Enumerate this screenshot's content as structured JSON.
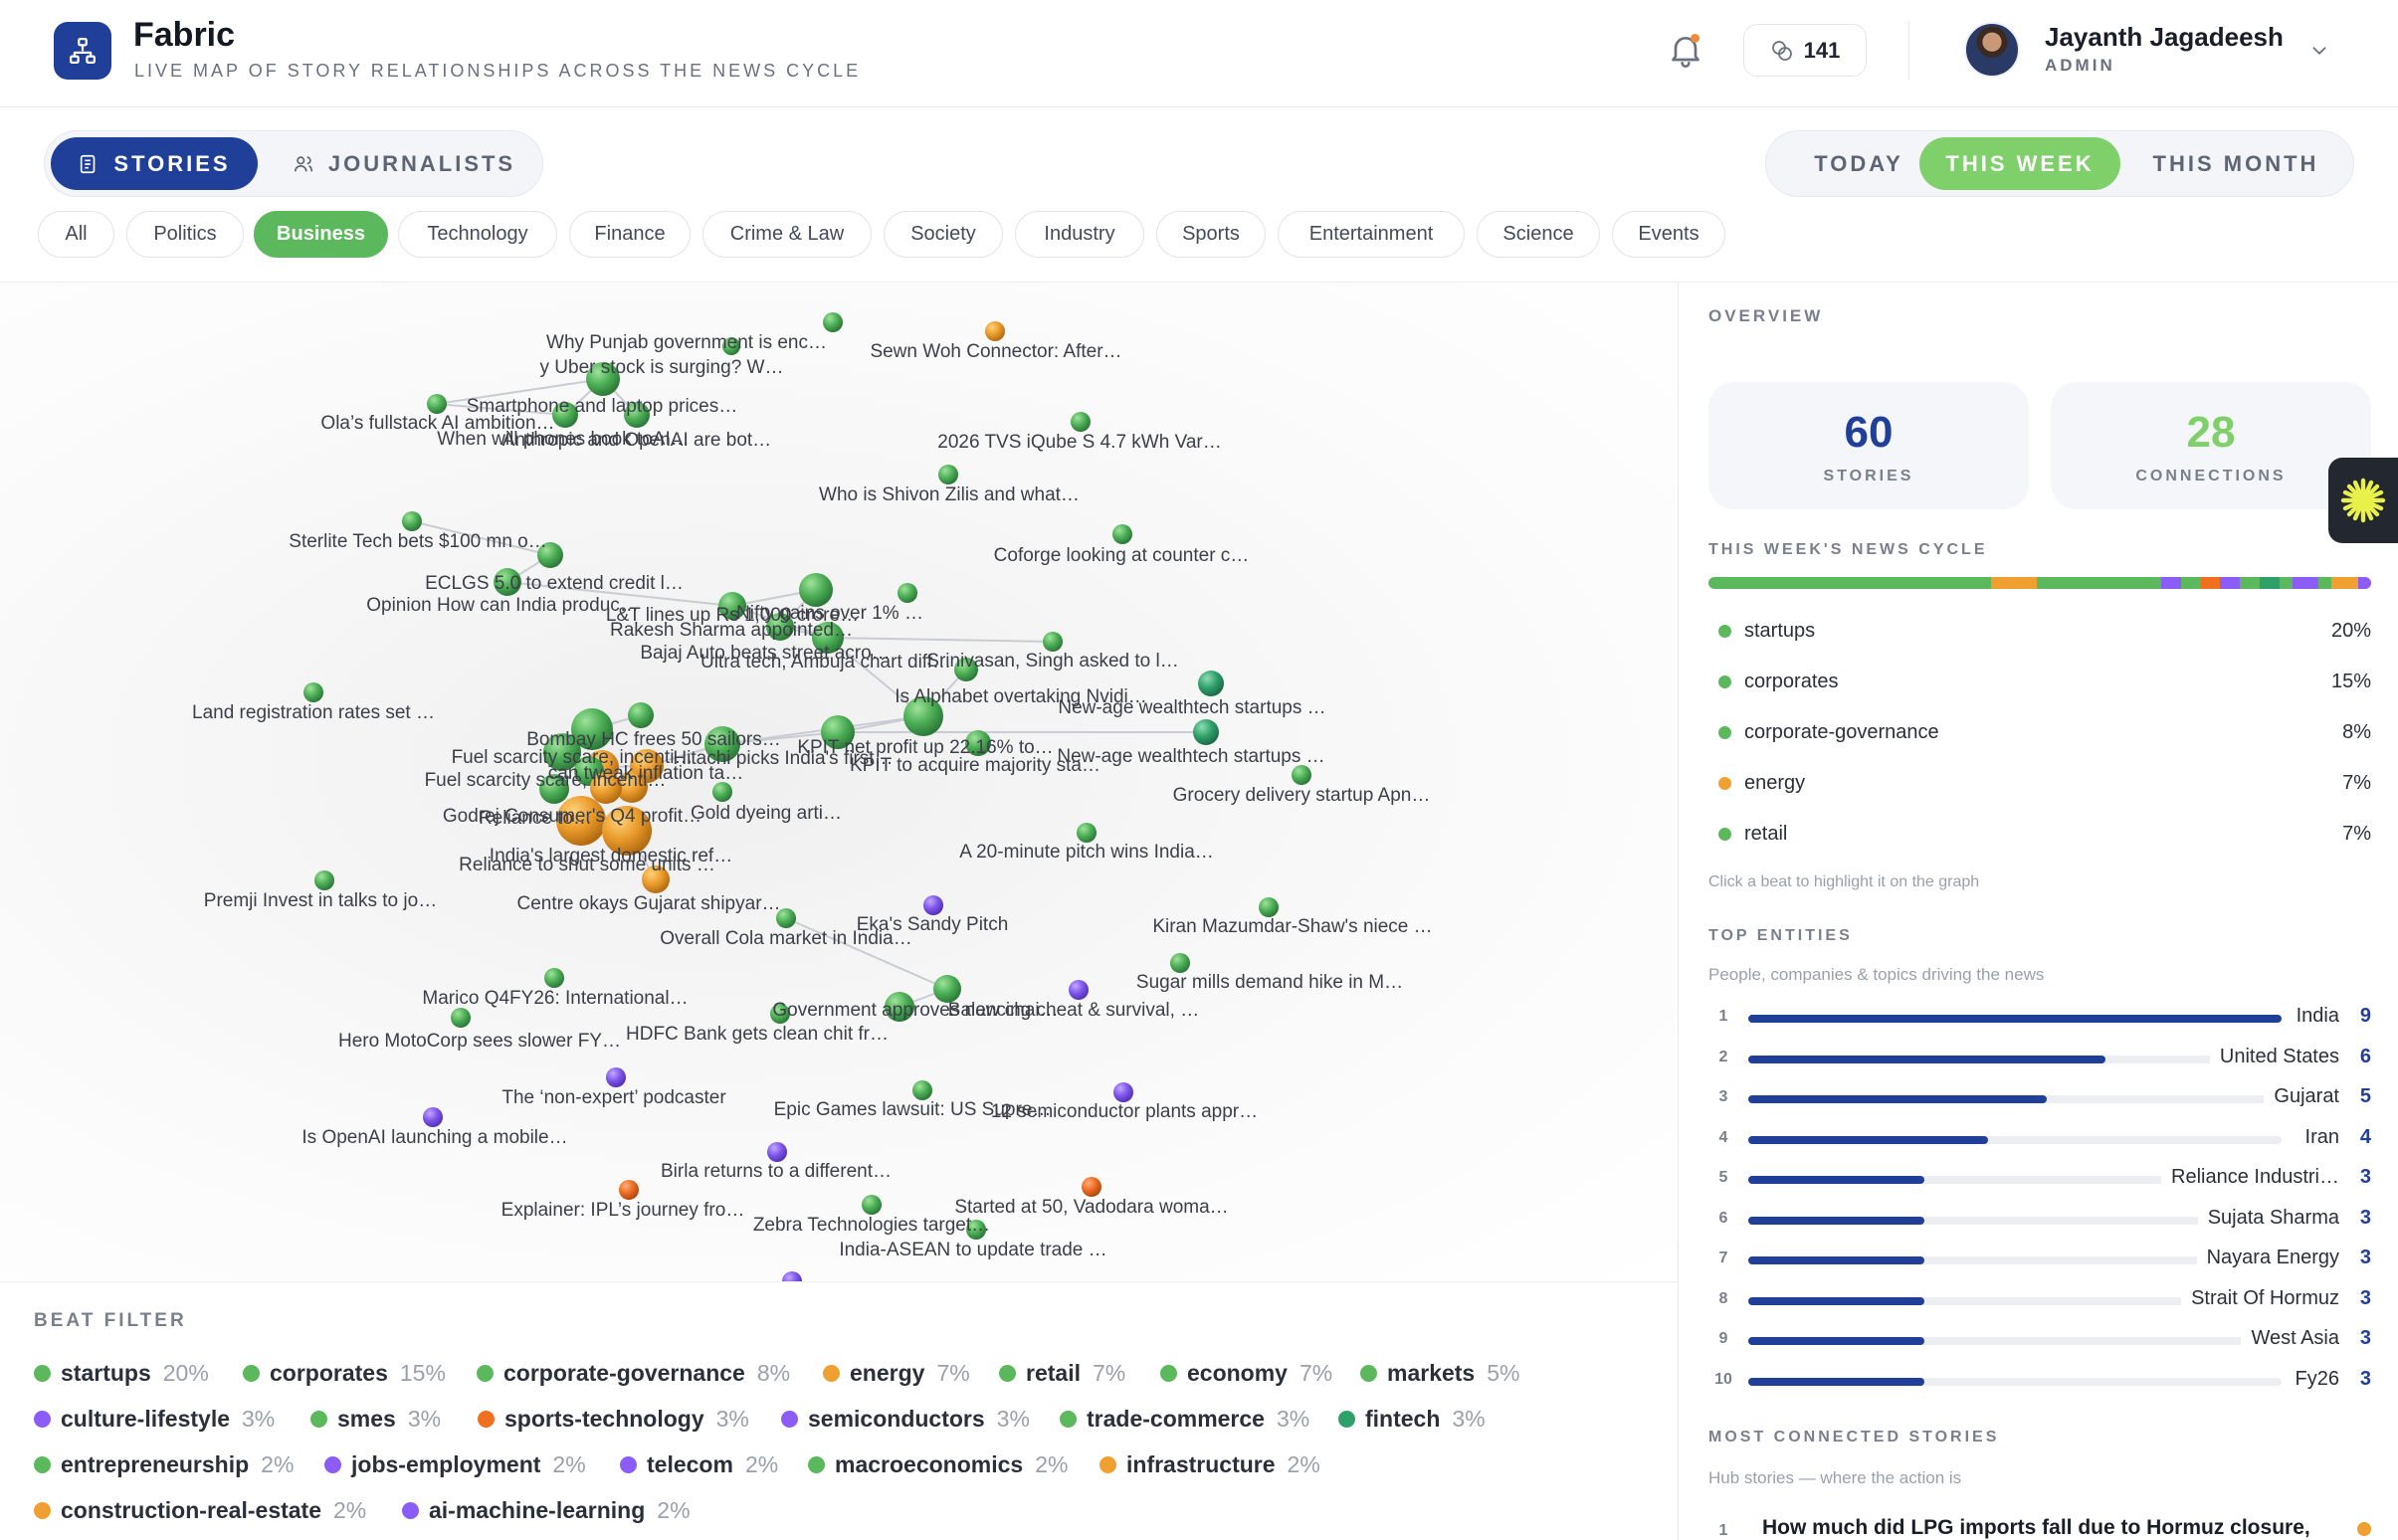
{
  "app": {
    "title": "Fabric",
    "subtitle": "LIVE MAP OF STORY RELATIONSHIPS ACROSS THE NEWS CYCLE",
    "logo_icon": "network-icon",
    "credits_value": "141",
    "user": {
      "name": "Jayanth Jagadeesh",
      "role": "ADMIN"
    }
  },
  "colors": {
    "primary": "#1f3f99",
    "green": "#5bb85c",
    "green_light": "#7fcf6a",
    "orange": "#f0a030",
    "purple": "#8b5cf6",
    "teal": "#2fa06a",
    "deep_orange": "#f07020"
  },
  "mode_tabs": [
    {
      "label": "STORIES",
      "icon": "newspaper-icon",
      "active": true
    },
    {
      "label": "JOURNALISTS",
      "icon": "users-icon",
      "active": false
    }
  ],
  "time_ranges": [
    {
      "label": "TODAY",
      "active": false
    },
    {
      "label": "THIS WEEK",
      "active": true
    },
    {
      "label": "THIS MONTH",
      "active": false
    }
  ],
  "categories": [
    {
      "label": "All",
      "active": false
    },
    {
      "label": "Politics",
      "active": false
    },
    {
      "label": "Business",
      "active": true
    },
    {
      "label": "Technology",
      "active": false
    },
    {
      "label": "Finance",
      "active": false
    },
    {
      "label": "Crime & Law",
      "active": false
    },
    {
      "label": "Society",
      "active": false
    },
    {
      "label": "Industry",
      "active": false
    },
    {
      "label": "Sports",
      "active": false
    },
    {
      "label": "Entertainment",
      "active": false
    },
    {
      "label": "Science",
      "active": false
    },
    {
      "label": "Events",
      "active": false
    }
  ],
  "graph": {
    "labels": [
      "Why Punjab government is enc…",
      "Sewn Woh Connector: After…",
      "y Uber stock is surging? W…",
      "Smartphone and laptop prices…",
      "Ola’s fullstack AI ambition…",
      "When will phones book toAI…",
      "Anthropic and OpenAI are bot…",
      "2026 TVS iQube S 4.7 kWh Var…",
      "Who is Shivon Zilis and what…",
      "Sterlite Tech bets $100 mn o…",
      "ECLGS 5.0 to extend credit l…",
      "Coforge looking at counter c…",
      "Opinion How can India produc…",
      "L&T lines up Rs 1,000 crore…",
      "Nifty gains over 1% …",
      "Rakesh Sharma appointed…",
      "Bajaj Auto beats street acro…",
      "Ultra tech, Ambuja chart diff…",
      "Srinivasan, Singh asked to l…",
      "Land registration rates set …",
      "Is Alphabet overtaking Nvidi…",
      "New-age wealthtech startups …",
      "Bombay HC frees 50 sailors…",
      "KPIT net profit up 22.16% to…",
      "New-age wealthtech startups …",
      "Fuel scarcity scare, incenti…",
      "Hitachi picks India's first…",
      "KPIT to acquire majority sta…",
      "Fuel scarcity scare, incenti…",
      "can tweak inflation ta…",
      "Grocery delivery startup Apn…",
      "Godrej Consumer's Q4 profit…",
      "Reliance to…",
      "Gold dyeing arti…",
      "India's largest domestic ref…",
      "A 20-minute pitch wins India…",
      "Reliance to shut some units …",
      "Premji Invest in talks to jo…",
      "Centre okays Gujarat shipyar…",
      "Eka's Sandy Pitch",
      "Kiran Mazumdar-Shaw's niece …",
      "Overall Cola market in India…",
      "Sugar mills demand hike in M…",
      "Marico Q4FY26: International…",
      "Government approves new chai…",
      "Balancing cheat & survival, …",
      "Hero MotoCorp sees slower FY…",
      "HDFC Bank gets clean chit fr…",
      "The ‘non-expert’ podcaster",
      "Epic Games lawsuit: US Supre…",
      "12 semiconductor plants appr…",
      "Is OpenAI launching a mobile…",
      "Birla returns to a different…",
      "Explainer: IPL’s journey fro…",
      "Started at 50, Vadodara woma…",
      "Zebra Technologies target…",
      "India-ASEAN to update trade …"
    ]
  },
  "beat_filter": {
    "title": "BEAT FILTER",
    "items": [
      {
        "name": "startups",
        "pct": "20%",
        "color": "#5bb85c"
      },
      {
        "name": "corporates",
        "pct": "15%",
        "color": "#5bb85c"
      },
      {
        "name": "corporate-governance",
        "pct": "8%",
        "color": "#5bb85c"
      },
      {
        "name": "energy",
        "pct": "7%",
        "color": "#f0a030"
      },
      {
        "name": "retail",
        "pct": "7%",
        "color": "#5bb85c"
      },
      {
        "name": "economy",
        "pct": "7%",
        "color": "#5bb85c"
      },
      {
        "name": "markets",
        "pct": "5%",
        "color": "#5bb85c"
      },
      {
        "name": "culture-lifestyle",
        "pct": "3%",
        "color": "#8b5cf6"
      },
      {
        "name": "smes",
        "pct": "3%",
        "color": "#5bb85c"
      },
      {
        "name": "sports-technology",
        "pct": "3%",
        "color": "#f07020"
      },
      {
        "name": "semiconductors",
        "pct": "3%",
        "color": "#8b5cf6"
      },
      {
        "name": "trade-commerce",
        "pct": "3%",
        "color": "#5bb85c"
      },
      {
        "name": "fintech",
        "pct": "3%",
        "color": "#2fa06a"
      },
      {
        "name": "entrepreneurship",
        "pct": "2%",
        "color": "#5bb85c"
      },
      {
        "name": "jobs-employment",
        "pct": "2%",
        "color": "#8b5cf6"
      },
      {
        "name": "telecom",
        "pct": "2%",
        "color": "#8b5cf6"
      },
      {
        "name": "macroeconomics",
        "pct": "2%",
        "color": "#5bb85c"
      },
      {
        "name": "infrastructure",
        "pct": "2%",
        "color": "#f0a030"
      },
      {
        "name": "construction-real-estate",
        "pct": "2%",
        "color": "#f0a030"
      },
      {
        "name": "ai-machine-learning",
        "pct": "2%",
        "color": "#8b5cf6"
      }
    ]
  },
  "overview": {
    "title": "OVERVIEW",
    "stories": {
      "value": "60",
      "label": "STORIES"
    },
    "connections": {
      "value": "28",
      "label": "CONNECTIONS"
    },
    "cycle_title": "THIS WEEK'S NEWS CYCLE",
    "top_beats": [
      {
        "name": "startups",
        "pct": "20%",
        "color": "#5bb85c"
      },
      {
        "name": "corporates",
        "pct": "15%",
        "color": "#5bb85c"
      },
      {
        "name": "corporate-governance",
        "pct": "8%",
        "color": "#5bb85c"
      },
      {
        "name": "energy",
        "pct": "7%",
        "color": "#f0a030"
      },
      {
        "name": "retail",
        "pct": "7%",
        "color": "#5bb85c"
      }
    ],
    "hint": "Click a beat to highlight it on the graph",
    "entities_title": "TOP ENTITIES",
    "entities_subtitle": "People, companies & topics driving the news",
    "entities": [
      {
        "rank": "1",
        "name": "India",
        "count": "9",
        "share": 1.0
      },
      {
        "rank": "2",
        "name": "United States",
        "count": "6",
        "share": 0.67
      },
      {
        "rank": "3",
        "name": "Gujarat",
        "count": "5",
        "share": 0.56
      },
      {
        "rank": "4",
        "name": "Iran",
        "count": "4",
        "share": 0.45
      },
      {
        "rank": "5",
        "name": "Reliance Industri…",
        "count": "3",
        "share": 0.33
      },
      {
        "rank": "6",
        "name": "Sujata Sharma",
        "count": "3",
        "share": 0.33
      },
      {
        "rank": "7",
        "name": "Nayara Energy",
        "count": "3",
        "share": 0.33
      },
      {
        "rank": "8",
        "name": "Strait Of Hormuz",
        "count": "3",
        "share": 0.33
      },
      {
        "rank": "9",
        "name": "West Asia",
        "count": "3",
        "share": 0.33
      },
      {
        "rank": "10",
        "name": "Fy26",
        "count": "3",
        "share": 0.33
      }
    ],
    "hubs_title": "MOST CONNECTED STORIES",
    "hubs_subtitle": "Hub stories — where the action is",
    "hubs": [
      {
        "rank": "1",
        "title": "How much did LPG imports fall due to Hormuz closure,"
      }
    ]
  }
}
